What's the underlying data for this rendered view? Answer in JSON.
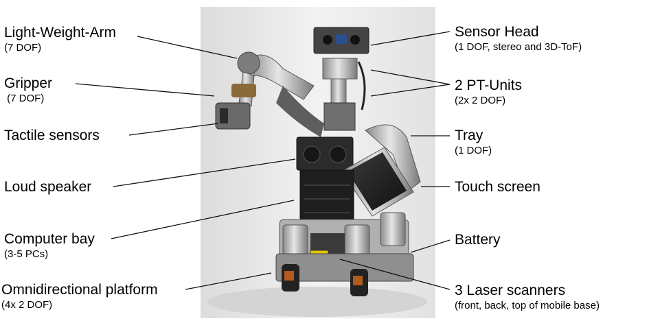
{
  "labels_left": [
    {
      "main": "Light-Weight-Arm",
      "sub": "(7 DOF)"
    },
    {
      "main": "Gripper",
      "sub": " (7 DOF)"
    },
    {
      "main": "Tactile sensors",
      "sub": ""
    },
    {
      "main": "Loud speaker",
      "sub": ""
    },
    {
      "main": "Computer bay",
      "sub": "(3-5 PCs)"
    },
    {
      "main": "Omnidirectional platform",
      "sub": "(4x 2 DOF)"
    }
  ],
  "labels_right": [
    {
      "main": "Sensor Head",
      "sub": "(1 DOF, stereo and 3D-ToF)"
    },
    {
      "main": "2 PT-Units",
      "sub": "(2x 2 DOF)"
    },
    {
      "main": "Tray",
      "sub": "(1 DOF)"
    },
    {
      "main": "Touch screen",
      "sub": ""
    },
    {
      "main": "Battery",
      "sub": ""
    },
    {
      "main": "3 Laser scanners",
      "sub": "(front, back, top of mobile base)"
    }
  ],
  "colors": {
    "line": "#111111",
    "backdrop": "#ececec"
  }
}
